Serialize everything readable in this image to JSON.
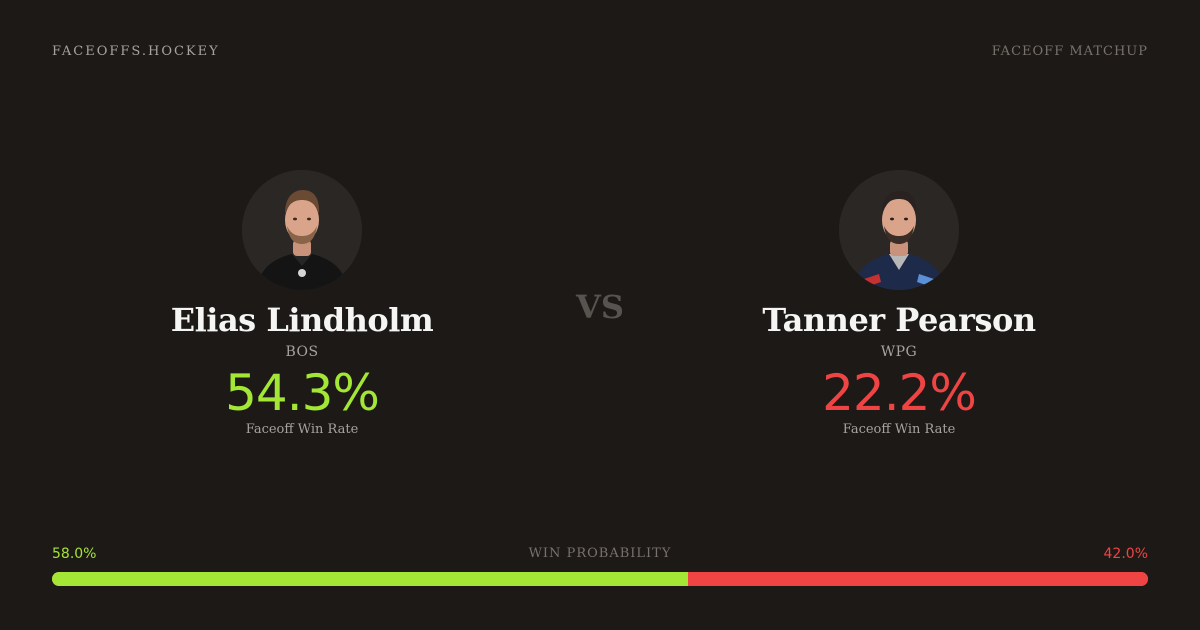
{
  "header": {
    "brand": "FACEOFFS.HOCKEY",
    "label": "FACEOFF MATCHUP"
  },
  "vs_label": "VS",
  "players": [
    {
      "name": "Elias Lindholm",
      "team": "BOS",
      "faceoff_win_rate": "54.3%",
      "rate_label": "Faceoff Win Rate",
      "rate_color": "#a3e635",
      "photo_icon": "player-headshot-black-jersey"
    },
    {
      "name": "Tanner Pearson",
      "team": "WPG",
      "faceoff_win_rate": "22.2%",
      "rate_label": "Faceoff Win Rate",
      "rate_color": "#ef4444",
      "photo_icon": "player-headshot-navy-jersey"
    }
  ],
  "win_probability": {
    "title": "WIN PROBABILITY",
    "left_label": "58.0%",
    "right_label": "42.0%",
    "left_value": 58.0,
    "right_value": 42.0,
    "left_color": "#a3e635",
    "right_color": "#ef4444"
  }
}
